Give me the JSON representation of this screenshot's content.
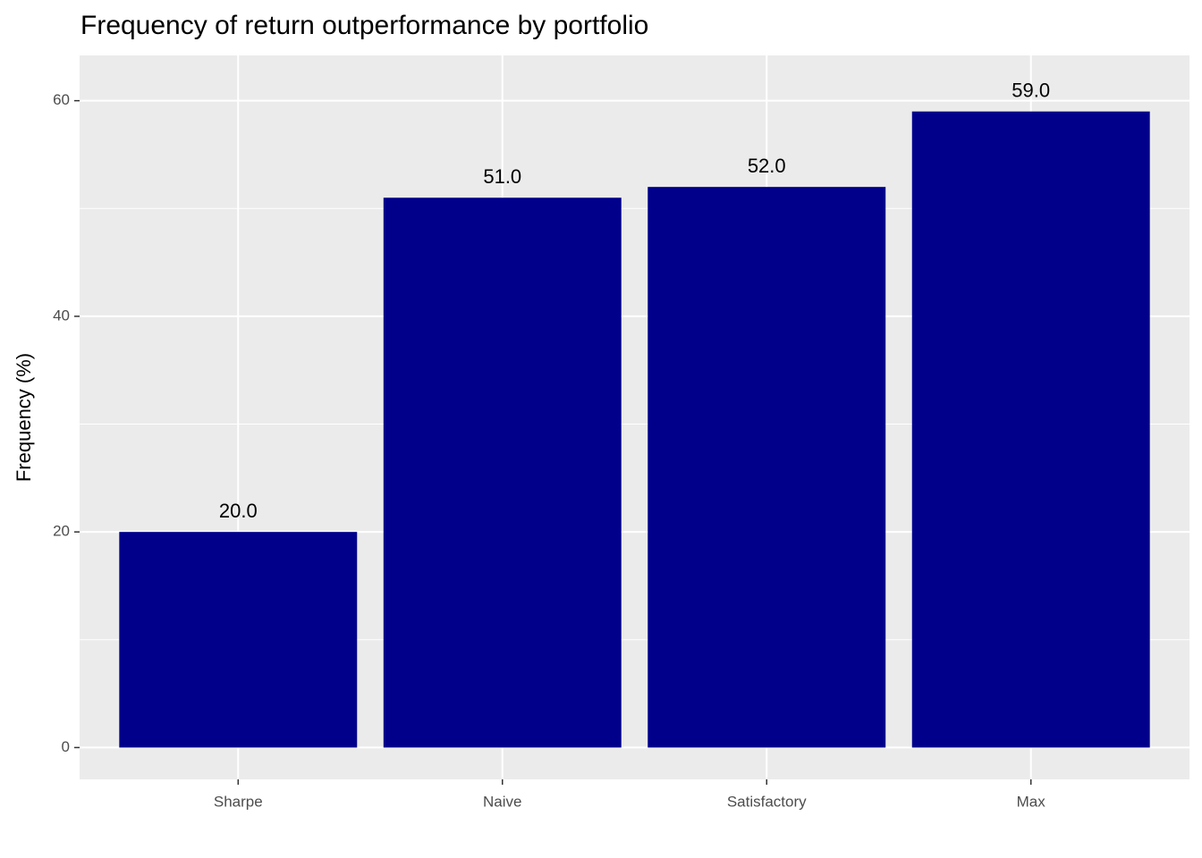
{
  "chart_data": {
    "type": "bar",
    "title": "Frequency of return outperformance by portfolio",
    "y_label": "Frequency (%)",
    "categories": [
      "Sharpe",
      "Naive",
      "Satisfactory",
      "Max"
    ],
    "values": [
      20,
      51,
      52,
      59
    ],
    "value_labels": [
      "20.0",
      "51.0",
      "52.0",
      "59.0"
    ],
    "color": "#00008b",
    "ylim": [
      -2.95,
      64.2
    ],
    "yticks": [
      0,
      20,
      40,
      60
    ],
    "grid": true
  }
}
